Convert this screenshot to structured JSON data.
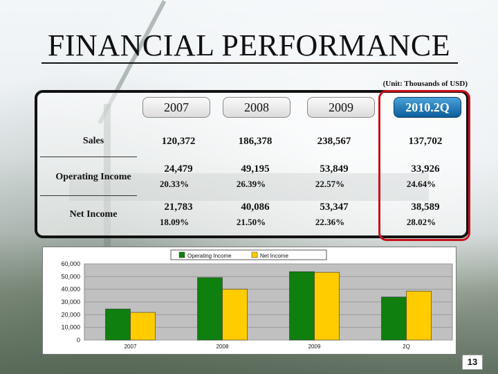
{
  "slide": {
    "title": "FINANCIAL PERFORMANCE",
    "unit_note": "(Unit:  Thousands of USD)",
    "page_number": "13"
  },
  "table": {
    "columns": [
      "2007",
      "2008",
      "2009",
      "2010.2Q"
    ],
    "highlight_column": "2010.2Q",
    "rows": [
      {
        "label": "Sales",
        "values": [
          "120,372",
          "186,378",
          "238,567",
          "137,702"
        ],
        "margins": []
      },
      {
        "label": "Operating Income",
        "values": [
          "24,479",
          "49,195",
          "53,849",
          "33,926"
        ],
        "margins": [
          "20.33%",
          "26.39%",
          "22.57%",
          "24.64%"
        ]
      },
      {
        "label": "Net Income",
        "values": [
          "21,783",
          "40,086",
          "53,347",
          "38,589"
        ],
        "margins": [
          "18.09%",
          "21.50%",
          "22.36%",
          "28.02%"
        ]
      }
    ]
  },
  "chart_data": {
    "type": "bar",
    "categories": [
      "2007",
      "2008",
      "2009",
      "2Q"
    ],
    "series": [
      {
        "name": "Operating Income",
        "color": "#0f7f0f",
        "values": [
          24479,
          49195,
          53849,
          33926
        ]
      },
      {
        "name": "Net Income",
        "color": "#ffcc00",
        "values": [
          21783,
          40086,
          53347,
          38589
        ]
      }
    ],
    "yticks": [
      "0",
      "10,000",
      "20,000",
      "30,000",
      "40,000",
      "50,000",
      "60,000"
    ],
    "ylim": [
      0,
      60000
    ],
    "grid": true,
    "plot_background": "#c0c0c0",
    "legend_position": "top"
  }
}
